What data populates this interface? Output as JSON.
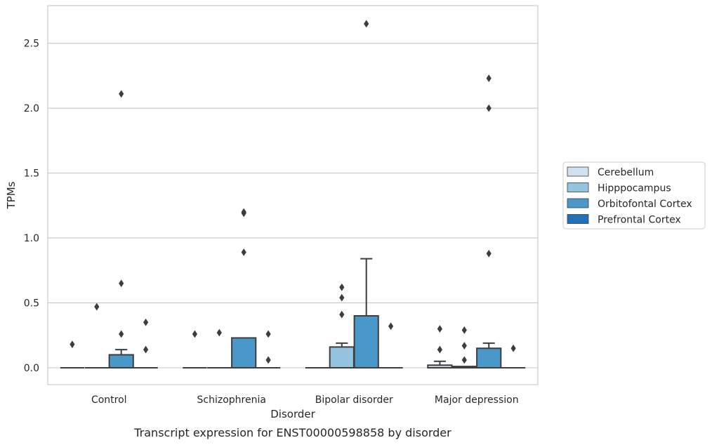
{
  "chart_data": {
    "type": "box",
    "caption": "Transcript expression for ENST00000598858 by disorder",
    "xlabel": "Disorder",
    "ylabel": "TPMs",
    "ylim": [
      -0.13,
      2.79
    ],
    "yticks": [
      "0.0",
      "0.5",
      "1.0",
      "1.5",
      "2.0",
      "2.5"
    ],
    "ytick_values": [
      0,
      0.5,
      1.0,
      1.5,
      2.0,
      2.5
    ],
    "grid": "horizontal",
    "legend_position": "right",
    "categories": [
      "Control",
      "Schizophrenia",
      "Bipolar disorder",
      "Major depression"
    ],
    "hues": [
      {
        "name": "Cerebellum",
        "color": "#d0e1f2"
      },
      {
        "name": "Hipppocampus",
        "color": "#94c4df"
      },
      {
        "name": "Orbitofontal Cortex",
        "color": "#4a98c9"
      },
      {
        "name": "Prefrontal Cortex",
        "color": "#2270b5"
      }
    ],
    "boxes": [
      {
        "category": 0,
        "hue": 0,
        "q1": 0,
        "median": 0,
        "q3": 0,
        "whisker_low": 0,
        "whisker_high": 0,
        "outliers": [
          0.18
        ]
      },
      {
        "category": 0,
        "hue": 1,
        "q1": 0,
        "median": 0,
        "q3": 0,
        "whisker_low": 0,
        "whisker_high": 0,
        "outliers": [
          0.47
        ]
      },
      {
        "category": 0,
        "hue": 2,
        "q1": 0,
        "median": 0,
        "q3": 0.1,
        "whisker_low": 0,
        "whisker_high": 0.14,
        "outliers": [
          0.26,
          0.65,
          2.11
        ]
      },
      {
        "category": 0,
        "hue": 3,
        "q1": 0,
        "median": 0,
        "q3": 0,
        "whisker_low": 0,
        "whisker_high": 0,
        "outliers": [
          0.14,
          0.35
        ]
      },
      {
        "category": 1,
        "hue": 0,
        "q1": 0,
        "median": 0,
        "q3": 0,
        "whisker_low": 0,
        "whisker_high": 0,
        "outliers": [
          0.26
        ]
      },
      {
        "category": 1,
        "hue": 1,
        "q1": 0,
        "median": 0,
        "q3": 0,
        "whisker_low": 0,
        "whisker_high": 0,
        "outliers": [
          0.27
        ]
      },
      {
        "category": 1,
        "hue": 2,
        "q1": 0,
        "median": 0,
        "q3": 0.23,
        "whisker_low": 0,
        "whisker_high": 0.23,
        "outliers": [
          0.89,
          1.19,
          1.2
        ]
      },
      {
        "category": 1,
        "hue": 3,
        "q1": 0,
        "median": 0,
        "q3": 0,
        "whisker_low": 0,
        "whisker_high": 0,
        "outliers": [
          0.06,
          0.26
        ]
      },
      {
        "category": 2,
        "hue": 0,
        "q1": 0,
        "median": 0,
        "q3": 0,
        "whisker_low": 0,
        "whisker_high": 0,
        "outliers": []
      },
      {
        "category": 2,
        "hue": 1,
        "q1": 0,
        "median": 0,
        "q3": 0.16,
        "whisker_low": 0,
        "whisker_high": 0.19,
        "outliers": [
          0.41,
          0.54,
          0.62
        ]
      },
      {
        "category": 2,
        "hue": 2,
        "q1": 0,
        "median": 0,
        "q3": 0.4,
        "whisker_low": 0,
        "whisker_high": 0.84,
        "outliers": [
          2.65
        ]
      },
      {
        "category": 2,
        "hue": 3,
        "q1": 0,
        "median": 0,
        "q3": 0,
        "whisker_low": 0,
        "whisker_high": 0,
        "outliers": [
          0.32
        ]
      },
      {
        "category": 3,
        "hue": 0,
        "q1": 0,
        "median": 0,
        "q3": 0.02,
        "whisker_low": 0,
        "whisker_high": 0.05,
        "outliers": [
          0.14,
          0.3
        ]
      },
      {
        "category": 3,
        "hue": 1,
        "q1": 0,
        "median": 0,
        "q3": 0.01,
        "whisker_low": 0,
        "whisker_high": 0.01,
        "outliers": [
          0.06,
          0.17,
          0.29
        ]
      },
      {
        "category": 3,
        "hue": 2,
        "q1": 0,
        "median": 0,
        "q3": 0.15,
        "whisker_low": 0,
        "whisker_high": 0.19,
        "outliers": [
          0.88,
          2.0,
          2.23
        ]
      },
      {
        "category": 3,
        "hue": 3,
        "q1": 0,
        "median": 0,
        "q3": 0,
        "whisker_low": 0,
        "whisker_high": 0,
        "outliers": [
          0.15
        ]
      }
    ]
  }
}
